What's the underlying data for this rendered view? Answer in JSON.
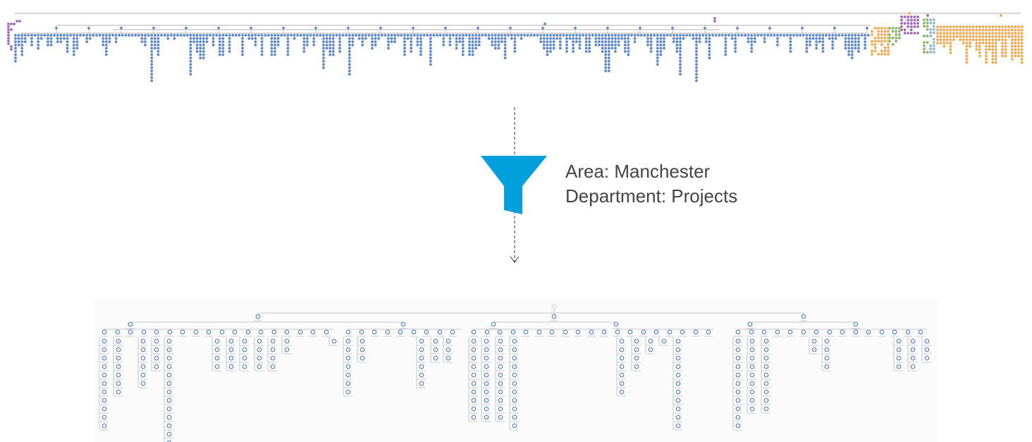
{
  "filter": {
    "area": "Area: Manchester",
    "department": "Department: Projects",
    "funnel_icon": "funnel-icon",
    "funnel_color": "#00a0dc",
    "arrow_icon": "arrow-down-icon"
  },
  "colors": {
    "node_blue": "#5b86c8",
    "node_purple": "#a267b8",
    "node_orange": "#f2a851",
    "node_green": "#8cb36a",
    "connector": "#999999"
  }
}
